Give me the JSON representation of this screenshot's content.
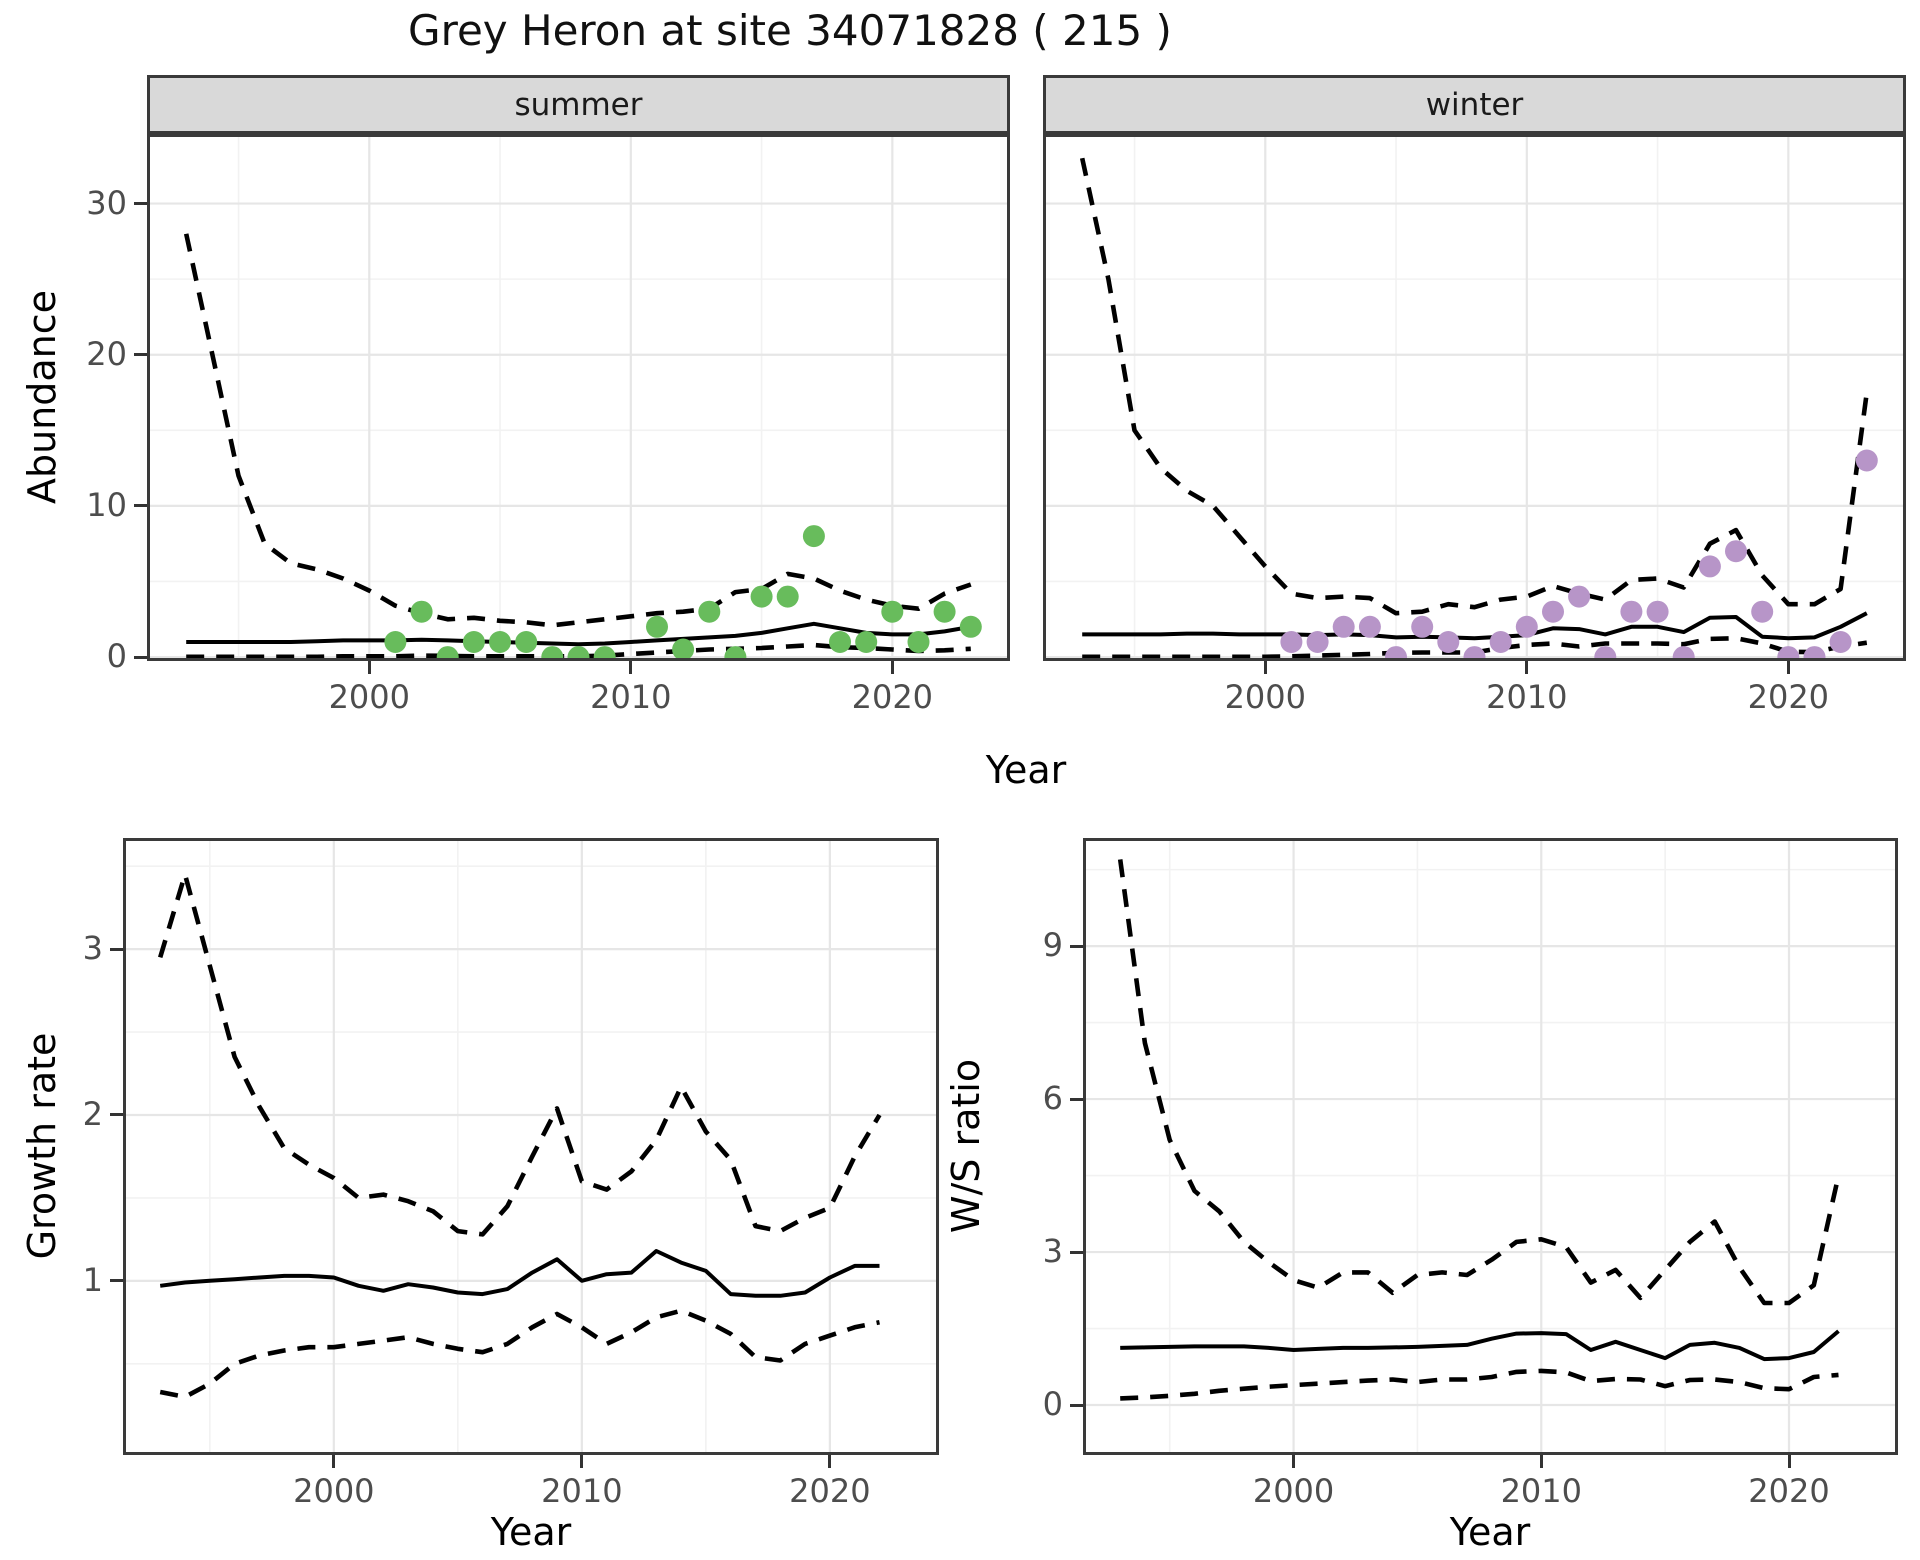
{
  "labels": {
    "title": "Grey Heron at site 34071828 ( 215 )"
  },
  "colors": {
    "summer_point": "#68BC5C",
    "winter_point": "#B795C8",
    "line": "#000000",
    "grid_major": "#E6E6E6",
    "grid_minor": "#F2F2F2",
    "border": "#3A3A3A",
    "strip_bg": "#D9D9D9",
    "tick_text": "#4D4D4D"
  },
  "chart_data": [
    {
      "id": "abundance-summer",
      "type": "line",
      "facet_label": "summer",
      "ylabel": "Abundance",
      "xlabel": "Year",
      "legend": "none",
      "grid": true,
      "x_domain": [
        1991.5,
        2024.5
      ],
      "y_domain": [
        -0.26,
        34.6
      ],
      "x_ticks_major": [
        2000,
        2010,
        2020
      ],
      "x_tick_labels": [
        "2000",
        "2010",
        "2020"
      ],
      "x_ticks_minor": [
        1995,
        2005,
        2015
      ],
      "y_ticks_major": [
        0,
        10,
        20,
        30
      ],
      "y_tick_labels": [
        "0",
        "10",
        "20",
        "30"
      ],
      "y_ticks_minor": [
        5,
        15,
        25
      ],
      "years": [
        1993,
        1994,
        1995,
        1996,
        1997,
        1998,
        1999,
        2000,
        2001,
        2002,
        2003,
        2004,
        2005,
        2006,
        2007,
        2008,
        2009,
        2010,
        2011,
        2012,
        2013,
        2014,
        2015,
        2016,
        2017,
        2018,
        2019,
        2020,
        2021,
        2022,
        2023
      ],
      "mean": [
        1.0,
        1.0,
        1.0,
        1.0,
        1.0,
        1.05,
        1.1,
        1.1,
        1.1,
        1.15,
        1.1,
        1.05,
        1.0,
        0.95,
        0.9,
        0.85,
        0.9,
        1.0,
        1.1,
        1.2,
        1.3,
        1.4,
        1.6,
        1.9,
        2.2,
        1.9,
        1.6,
        1.5,
        1.5,
        1.7,
        2.0
      ],
      "upper_ci": [
        28,
        20,
        12,
        7.5,
        6.2,
        5.8,
        5.2,
        4.4,
        3.4,
        2.9,
        2.5,
        2.6,
        2.4,
        2.3,
        2.1,
        2.3,
        2.5,
        2.7,
        2.9,
        3.0,
        3.2,
        4.3,
        4.5,
        5.5,
        5.2,
        4.4,
        3.8,
        3.4,
        3.2,
        4.2,
        4.8
      ],
      "lower_ci": [
        0.02,
        0.02,
        0.02,
        0.02,
        0.02,
        0.02,
        0.05,
        0.05,
        0.05,
        0.1,
        0.08,
        0.05,
        0.05,
        0.05,
        0.05,
        0.05,
        0.1,
        0.2,
        0.3,
        0.4,
        0.5,
        0.55,
        0.6,
        0.7,
        0.8,
        0.65,
        0.6,
        0.5,
        0.4,
        0.45,
        0.55
      ],
      "points": {
        "years": [
          2001,
          2002,
          2003,
          2004,
          2005,
          2006,
          2007,
          2008,
          2009,
          2011,
          2012,
          2013,
          2014,
          2015,
          2016,
          2017,
          2018,
          2019,
          2020,
          2021,
          2022,
          2023
        ],
        "values": [
          1,
          3,
          0,
          1,
          1,
          1,
          0,
          0,
          0,
          2,
          0.5,
          3,
          0,
          4,
          4,
          8,
          1,
          1,
          3,
          1,
          3,
          2
        ]
      },
      "point_color": "#68BC5C"
    },
    {
      "id": "abundance-winter",
      "type": "line",
      "facet_label": "winter",
      "ylabel": "Abundance",
      "xlabel": "Year",
      "legend": "none",
      "grid": true,
      "x_domain": [
        1991.5,
        2024.5
      ],
      "y_domain": [
        -0.26,
        34.6
      ],
      "x_ticks_major": [
        2000,
        2010,
        2020
      ],
      "x_tick_labels": [
        "2000",
        "2010",
        "2020"
      ],
      "x_ticks_minor": [
        1995,
        2005,
        2015
      ],
      "y_ticks_major": [
        0,
        10,
        20,
        30
      ],
      "y_tick_labels": [
        "0",
        "10",
        "20",
        "30"
      ],
      "y_ticks_minor": [
        5,
        15,
        25
      ],
      "years": [
        1993,
        1994,
        1995,
        1996,
        1997,
        1998,
        1999,
        2000,
        2001,
        2002,
        2003,
        2004,
        2005,
        2006,
        2007,
        2008,
        2009,
        2010,
        2011,
        2012,
        2013,
        2014,
        2015,
        2016,
        2017,
        2018,
        2019,
        2020,
        2021,
        2022,
        2023
      ],
      "mean": [
        1.5,
        1.5,
        1.5,
        1.5,
        1.55,
        1.55,
        1.5,
        1.5,
        1.5,
        1.45,
        1.5,
        1.45,
        1.3,
        1.35,
        1.3,
        1.25,
        1.35,
        1.45,
        1.9,
        1.85,
        1.5,
        2.0,
        2.0,
        1.65,
        2.6,
        2.65,
        1.35,
        1.25,
        1.3,
        2.0,
        2.9
      ],
      "upper_ci": [
        33,
        25,
        15,
        12.5,
        11,
        10,
        8,
        6,
        4.2,
        3.9,
        4.0,
        3.9,
        2.9,
        3.0,
        3.5,
        3.3,
        3.8,
        4.0,
        4.7,
        4.2,
        3.8,
        5.1,
        5.2,
        4.6,
        7.5,
        8.4,
        5.4,
        3.5,
        3.5,
        4.5,
        17.5
      ],
      "lower_ci": [
        0.02,
        0.02,
        0.02,
        0.02,
        0.02,
        0.02,
        0.02,
        0.02,
        0.05,
        0.1,
        0.15,
        0.2,
        0.28,
        0.3,
        0.3,
        0.3,
        0.6,
        0.8,
        0.9,
        0.7,
        0.9,
        0.9,
        0.9,
        0.85,
        1.2,
        1.25,
        0.9,
        0.35,
        0.33,
        0.7,
        0.95
      ],
      "points": {
        "years": [
          2001,
          2002,
          2003,
          2004,
          2005,
          2006,
          2007,
          2008,
          2009,
          2010,
          2011,
          2012,
          2013,
          2014,
          2015,
          2016,
          2017,
          2018,
          2019,
          2020,
          2021,
          2022,
          2023
        ],
        "values": [
          1,
          1,
          2,
          2,
          0,
          2,
          1,
          0,
          1,
          2,
          3,
          4,
          0,
          3,
          3,
          0,
          6,
          7,
          3,
          0,
          0,
          1,
          13
        ]
      },
      "point_color": "#B795C8"
    },
    {
      "id": "growth-rate",
      "type": "line",
      "facet_label": "",
      "ylabel": "Growth rate",
      "xlabel": "Year",
      "legend": "none",
      "grid": true,
      "x_domain": [
        1991.5,
        2024.4
      ],
      "y_domain": [
        -0.05,
        3.67
      ],
      "x_ticks_major": [
        2000,
        2010,
        2020
      ],
      "x_tick_labels": [
        "2000",
        "2010",
        "2020"
      ],
      "x_ticks_minor": [
        1995,
        2005,
        2015
      ],
      "y_ticks_major": [
        1,
        2,
        3
      ],
      "y_tick_labels": [
        "1",
        "2",
        "3"
      ],
      "y_ticks_minor": [
        0.5,
        1.5,
        2.5,
        3.5
      ],
      "years": [
        1993,
        1994,
        1995,
        1996,
        1997,
        1998,
        1999,
        2000,
        2001,
        2002,
        2003,
        2004,
        2005,
        2006,
        2007,
        2008,
        2009,
        2010,
        2011,
        2012,
        2013,
        2014,
        2015,
        2016,
        2017,
        2018,
        2019,
        2020,
        2021,
        2022
      ],
      "mean": [
        0.97,
        0.99,
        1.0,
        1.01,
        1.02,
        1.03,
        1.03,
        1.02,
        0.97,
        0.94,
        0.98,
        0.96,
        0.93,
        0.92,
        0.95,
        1.05,
        1.13,
        1.0,
        1.04,
        1.05,
        1.18,
        1.11,
        1.06,
        0.92,
        0.91,
        0.91,
        0.93,
        1.02,
        1.09,
        1.09
      ],
      "upper_ci": [
        2.95,
        3.45,
        2.9,
        2.35,
        2.05,
        1.8,
        1.7,
        1.62,
        1.5,
        1.52,
        1.48,
        1.42,
        1.3,
        1.28,
        1.45,
        1.75,
        2.04,
        1.6,
        1.55,
        1.66,
        1.85,
        2.17,
        1.9,
        1.73,
        1.33,
        1.3,
        1.38,
        1.44,
        1.75,
        2.0
      ],
      "lower_ci": [
        0.33,
        0.3,
        0.38,
        0.5,
        0.55,
        0.58,
        0.6,
        0.6,
        0.62,
        0.64,
        0.66,
        0.62,
        0.59,
        0.57,
        0.62,
        0.72,
        0.8,
        0.72,
        0.62,
        0.69,
        0.78,
        0.82,
        0.76,
        0.68,
        0.54,
        0.52,
        0.62,
        0.67,
        0.72,
        0.75
      ],
      "points": null,
      "point_color": null
    },
    {
      "id": "ws-ratio",
      "type": "line",
      "facet_label": "",
      "ylabel": "W/S ratio",
      "xlabel": "Year",
      "legend": "none",
      "grid": true,
      "x_domain": [
        1991.5,
        2024.4
      ],
      "y_domain": [
        -0.98,
        11.12
      ],
      "x_ticks_major": [
        2000,
        2010,
        2020
      ],
      "x_tick_labels": [
        "2000",
        "2010",
        "2020"
      ],
      "x_ticks_minor": [
        1995,
        2005,
        2015
      ],
      "y_ticks_major": [
        0,
        3,
        6,
        9
      ],
      "y_tick_labels": [
        "0",
        "3",
        "6",
        "9"
      ],
      "y_ticks_minor": [
        1.5,
        4.5,
        7.5,
        10.5
      ],
      "years": [
        1993,
        1994,
        1995,
        1996,
        1997,
        1998,
        1999,
        2000,
        2001,
        2002,
        2003,
        2004,
        2005,
        2006,
        2007,
        2008,
        2009,
        2010,
        2011,
        2012,
        2013,
        2014,
        2015,
        2016,
        2017,
        2018,
        2019,
        2020,
        2021,
        2022
      ],
      "mean": [
        1.12,
        1.13,
        1.14,
        1.15,
        1.15,
        1.15,
        1.12,
        1.08,
        1.1,
        1.12,
        1.12,
        1.13,
        1.14,
        1.16,
        1.18,
        1.3,
        1.4,
        1.41,
        1.39,
        1.08,
        1.24,
        1.08,
        0.92,
        1.18,
        1.22,
        1.12,
        0.9,
        0.92,
        1.04,
        1.45
      ],
      "upper_ci": [
        10.7,
        7.1,
        5.2,
        4.2,
        3.8,
        3.2,
        2.8,
        2.45,
        2.3,
        2.6,
        2.6,
        2.2,
        2.55,
        2.6,
        2.55,
        2.85,
        3.2,
        3.25,
        3.1,
        2.4,
        2.65,
        2.1,
        2.65,
        3.2,
        3.6,
        2.7,
        2.0,
        2.0,
        2.35,
        4.5
      ],
      "lower_ci": [
        0.13,
        0.15,
        0.18,
        0.22,
        0.28,
        0.32,
        0.36,
        0.39,
        0.42,
        0.45,
        0.48,
        0.5,
        0.45,
        0.5,
        0.5,
        0.55,
        0.65,
        0.67,
        0.64,
        0.47,
        0.51,
        0.5,
        0.37,
        0.49,
        0.5,
        0.45,
        0.33,
        0.31,
        0.55,
        0.59
      ],
      "points": null,
      "point_color": null
    }
  ]
}
